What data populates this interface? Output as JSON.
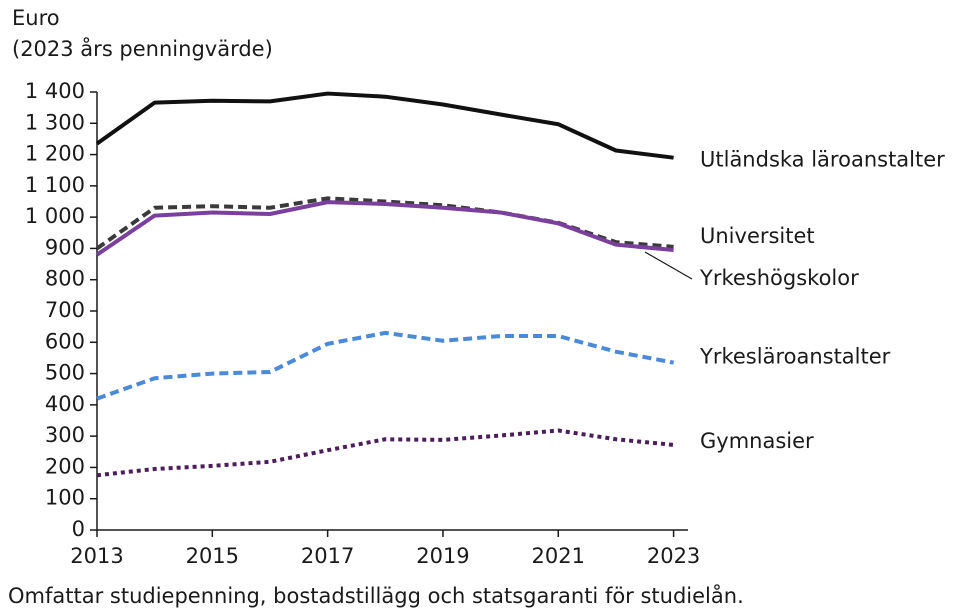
{
  "chart_data": {
    "type": "line",
    "y_label_lines": [
      "Euro",
      "(2023 års penningvärde)"
    ],
    "note": "Omfattar studiepenning, bostadstillägg och statsgaranti för studielån.",
    "x": [
      2013,
      2014,
      2015,
      2016,
      2017,
      2018,
      2019,
      2020,
      2021,
      2022,
      2023
    ],
    "xlim": [
      2013,
      2023.25
    ],
    "xticks": [
      2013,
      2015,
      2017,
      2019,
      2021,
      2023
    ],
    "ylim": [
      0,
      1400
    ],
    "yticks": [
      0,
      100,
      200,
      300,
      400,
      500,
      600,
      700,
      800,
      900,
      {
        "value": 1000,
        "label": "1 000"
      },
      {
        "value": 1100,
        "label": "1 100"
      },
      {
        "value": 1200,
        "label": "1 200"
      },
      {
        "value": 1300,
        "label": "1 300"
      },
      {
        "value": 1400,
        "label": "1 400"
      }
    ],
    "series": [
      {
        "name": "Utländska läroanstalter",
        "color": "#111111",
        "style": "solid",
        "values": [
          1235,
          1366,
          1372,
          1370,
          1395,
          1385,
          1360,
          1328,
          1297,
          1213,
          1190
        ]
      },
      {
        "name": "Universitet",
        "color": "#3a3a3a",
        "style": "dashed",
        "values": [
          900,
          1030,
          1035,
          1030,
          1060,
          1050,
          1038,
          1015,
          982,
          920,
          905
        ]
      },
      {
        "name": "Yrkeshögskolor",
        "color": "#7b3f9e",
        "style": "solid",
        "values": [
          880,
          1005,
          1015,
          1010,
          1048,
          1042,
          1030,
          1015,
          980,
          912,
          895
        ]
      },
      {
        "name": "Yrkesläroanstalter",
        "color": "#4a8ad8",
        "style": "dashed",
        "values": [
          420,
          485,
          500,
          505,
          595,
          630,
          605,
          620,
          620,
          570,
          535
        ]
      },
      {
        "name": "Gymnasier",
        "color": "#4b1e5a",
        "style": "dotted",
        "values": [
          175,
          195,
          205,
          218,
          255,
          290,
          288,
          302,
          318,
          290,
          272
        ]
      }
    ]
  }
}
